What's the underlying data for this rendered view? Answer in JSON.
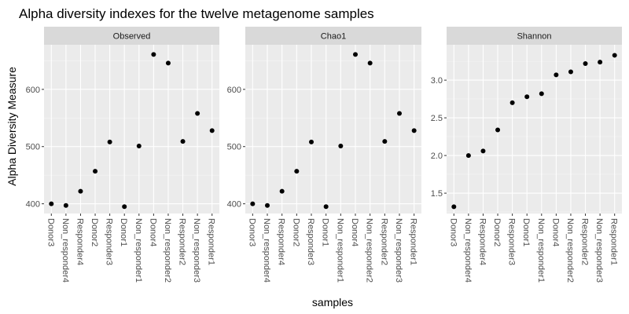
{
  "chart_data": {
    "type": "scatter",
    "title": "Alpha diversity indexes for the twelve metagenome samples",
    "xlabel": "samples",
    "ylabel": "Alpha Diversity Measure",
    "categories": [
      "Donor3",
      "Non_responder4",
      "Responder4",
      "Donor2",
      "Responder3",
      "Donor1",
      "Non_responder1",
      "Donor4",
      "Non_responder2",
      "Responder2",
      "Non_responder3",
      "Responder1"
    ],
    "grid": true,
    "panels": [
      {
        "name": "Observed",
        "ylim": [
          383,
          678
        ],
        "yticks": [
          400,
          500,
          600
        ],
        "values": [
          400,
          397,
          422,
          457,
          508,
          395,
          501,
          661,
          646,
          509,
          558,
          528
        ]
      },
      {
        "name": "Chao1",
        "ylim": [
          383,
          678
        ],
        "yticks": [
          400,
          500,
          600
        ],
        "values": [
          400,
          397,
          422,
          457,
          508,
          395,
          501,
          661,
          646,
          509,
          558,
          528
        ]
      },
      {
        "name": "Shannon",
        "ylim": [
          1.23,
          3.47
        ],
        "yticks": [
          1.5,
          2.0,
          2.5,
          3.0
        ],
        "ytick_labels": [
          "1.5",
          "2.0",
          "2.5",
          "3.0"
        ],
        "values": [
          1.32,
          2.0,
          2.06,
          2.34,
          2.7,
          2.78,
          2.82,
          3.07,
          3.11,
          3.22,
          3.24,
          3.33
        ]
      }
    ]
  }
}
